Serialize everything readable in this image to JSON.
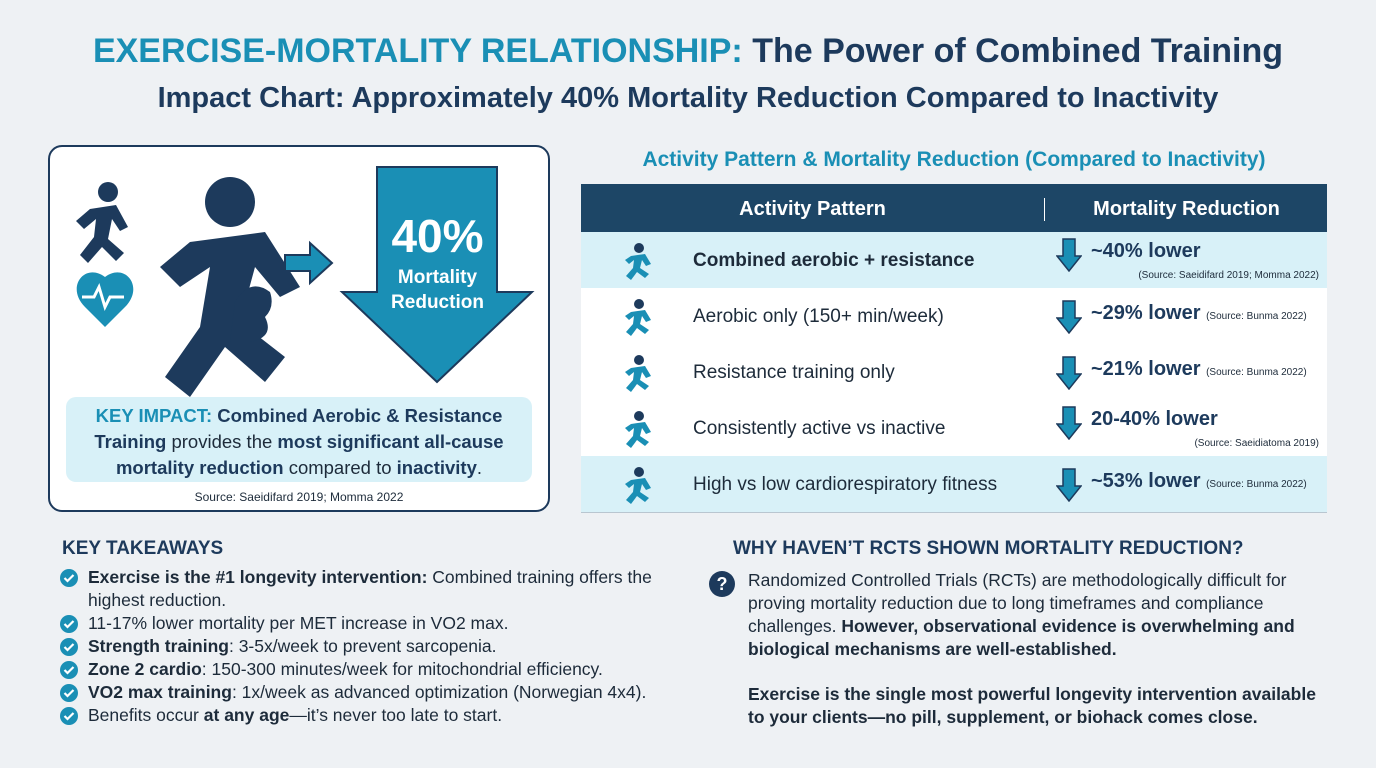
{
  "header": {
    "title_lead": "EXERCISE-MORTALITY RELATIONSHIP:",
    "title_rest": "The Power of Combined Training",
    "subtitle": "Impact Chart: Approximately 40% Mortality Reduction Compared to Inactivity"
  },
  "impact_panel": {
    "big_value": "40%",
    "big_label": [
      "Mortality",
      "Reduction"
    ],
    "key_impact": [
      "KEY IMPACT:",
      "Combined Aerobic & Resistance Training",
      "provides the",
      "most significant all-cause mortality reduction",
      "compared to",
      "inactivity",
      "."
    ],
    "source": "Source: Saeidifard 2019; Momma 2022"
  },
  "table": {
    "title": "Activity Pattern & Mortality Reduction (Compared to Inactivity)",
    "headers": [
      "Activity Pattern",
      "Mortality Reduction"
    ],
    "rows": [
      [
        "Combined aerobic + resistance",
        "~40% lower",
        "(Source: Saeidifard 2019; Momma 2022)"
      ],
      [
        "Aerobic only (150+ min/week)",
        "~29% lower",
        "(Source: Bunma 2022)"
      ],
      [
        "Resistance training only",
        "~21% lower",
        "(Source: Bunma 2022)"
      ],
      [
        "Consistently active vs inactive",
        "20-40% lower",
        "(Source: Saeidiatoma 2019)"
      ],
      [
        "High vs low cardiorespiratory fitness",
        "~53% lower",
        "(Source: Bunma 2022)"
      ]
    ]
  },
  "takeaways": {
    "title": "KEY TAKEAWAYS",
    "items": [
      [
        "Exercise is the #1 longevity intervention:",
        "Combined training offers the highest reduction."
      ],
      [
        "11-17% lower mortality per MET increase in VO2 max."
      ],
      [
        "Strength training",
        ": 3-5x/week to prevent sarcopenia."
      ],
      [
        "Zone 2 cardio",
        ": 150-300 minutes/week for mitochondrial efficiency."
      ],
      [
        "VO2 max training",
        ": 1x/week as advanced optimization (Norwegian 4x4)."
      ],
      [
        "Benefits occur",
        "at any age",
        "—it’s never too late to start."
      ]
    ]
  },
  "rcts": {
    "title": "WHY HAVEN’T RCTS SHOWN MORTALITY REDUCTION?",
    "paragraph": [
      "Randomized Controlled Trials (RCTs) are methodologically difficult for proving mortality reduction due to long timeframes and compliance challenges.",
      "However, observational evidence is overwhelming and biological mechanisms are well-established."
    ],
    "conclusion": "Exercise is the single most powerful longevity intervention available to your clients—no pill, supplement, or biohack comes close."
  }
}
